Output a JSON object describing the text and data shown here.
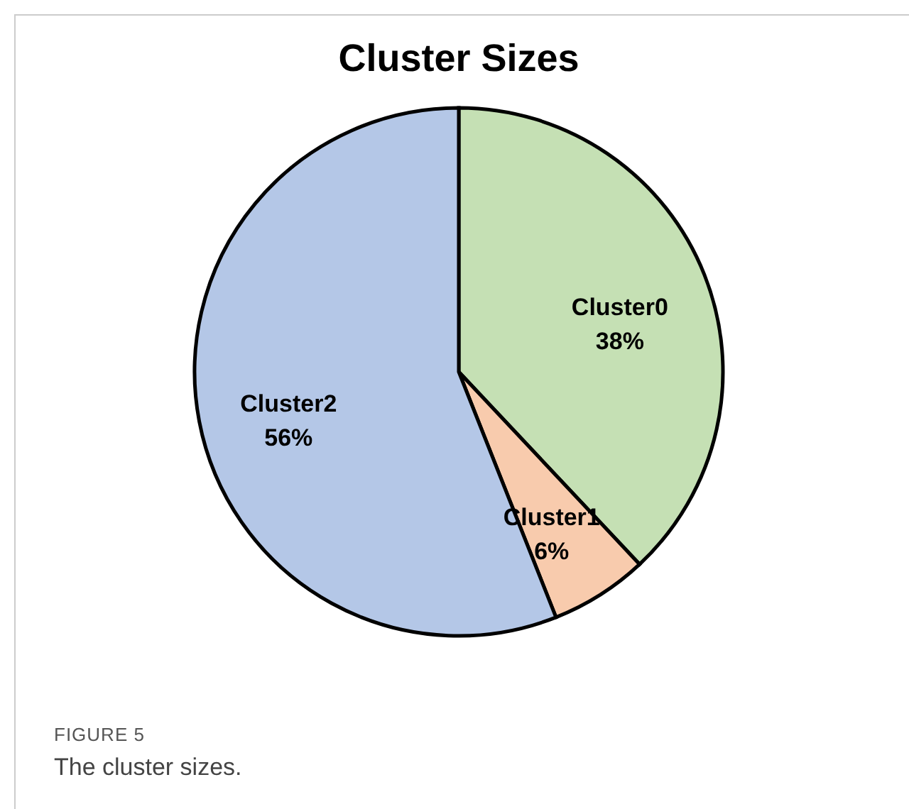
{
  "chart_data": {
    "type": "pie",
    "title": "Cluster Sizes",
    "categories": [
      "Cluster0",
      "Cluster1",
      "Cluster2"
    ],
    "values": [
      38,
      6,
      56
    ],
    "colors": [
      "#c5e0b4",
      "#f8cbad",
      "#b4c7e7"
    ],
    "value_labels": [
      "38%",
      "6%",
      "56%"
    ],
    "legend": false,
    "annotations": [
      "FIGURE 5",
      "The cluster sizes."
    ]
  }
}
